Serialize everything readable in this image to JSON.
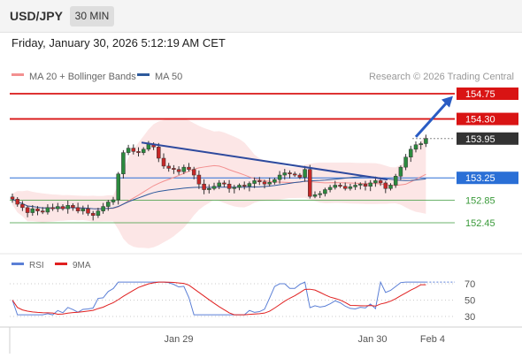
{
  "header": {
    "symbol": "USD/JPY",
    "timeframe": "30 MIN",
    "datetime": "Friday, January 30, 2026 5:12:19 AM CET"
  },
  "legend": {
    "ma20_label": "MA 20 + Bollinger Bands",
    "ma50_label": "MA 50",
    "ma20_color": "#f39090",
    "ma50_color": "#2e5a9c",
    "copyright": "Research © 2026 Trading Central"
  },
  "rsi_legend": {
    "rsi_label": "RSI",
    "ma9_label": "9MA",
    "rsi_color": "#5b7fd6",
    "ma9_color": "#e02020"
  },
  "chart_data": [
    {
      "type": "candlestick",
      "title": "",
      "x_tick_labels": [
        "Jan 29",
        "Jan 30",
        "Feb 4"
      ],
      "price_levels": [
        {
          "value": 154.75,
          "label": "154.75",
          "kind": "resistance",
          "color": "#d91414"
        },
        {
          "value": 154.3,
          "label": "154.30",
          "kind": "resistance",
          "color": "#d91414"
        },
        {
          "value": 153.95,
          "label": "153.95",
          "kind": "last",
          "color": "#333333"
        },
        {
          "value": 153.25,
          "label": "153.25",
          "kind": "pivot",
          "color": "#2a6fd6"
        },
        {
          "value": 152.85,
          "label": "152.85",
          "kind": "support",
          "color": "#3a9a3a"
        },
        {
          "value": 152.45,
          "label": "152.45",
          "kind": "support",
          "color": "#3a9a3a"
        }
      ],
      "closes": [
        152.87,
        152.78,
        152.72,
        152.63,
        152.7,
        152.66,
        152.64,
        152.72,
        152.7,
        152.74,
        152.7,
        152.76,
        152.72,
        152.66,
        152.7,
        152.62,
        152.58,
        152.66,
        152.74,
        152.82,
        152.86,
        153.32,
        153.7,
        153.78,
        153.72,
        153.7,
        153.76,
        153.85,
        153.8,
        153.6,
        153.46,
        153.42,
        153.4,
        153.36,
        153.44,
        153.4,
        153.3,
        153.14,
        153.04,
        153.06,
        153.1,
        153.16,
        153.14,
        153.06,
        153.08,
        153.12,
        153.1,
        153.15,
        153.2,
        153.18,
        153.14,
        153.17,
        153.22,
        153.3,
        153.34,
        153.32,
        153.3,
        153.26,
        153.4,
        152.92,
        152.95,
        152.97,
        153.04,
        153.08,
        153.12,
        153.1,
        153.06,
        153.09,
        153.12,
        153.14,
        153.1,
        153.16,
        153.2,
        153.16,
        153.06,
        153.12,
        153.28,
        153.44,
        153.62,
        153.76,
        153.84,
        153.86,
        153.95
      ],
      "annotations": [
        {
          "type": "trendline",
          "from_index": 40,
          "from_price": 153.88,
          "to_index": 109,
          "to_price": 153.22,
          "color": "#2e4a9e"
        },
        {
          "type": "arrow",
          "from_index": 121,
          "from_price": 153.98,
          "to_index": 129,
          "to_price": 154.74,
          "color": "#2a5cc4"
        }
      ]
    },
    {
      "type": "line",
      "title": "RSI",
      "y_ticks": [
        70,
        50,
        30
      ],
      "series": [
        {
          "name": "RSI",
          "color": "#5b7fd6"
        },
        {
          "name": "9MA",
          "color": "#e02020"
        }
      ]
    }
  ]
}
